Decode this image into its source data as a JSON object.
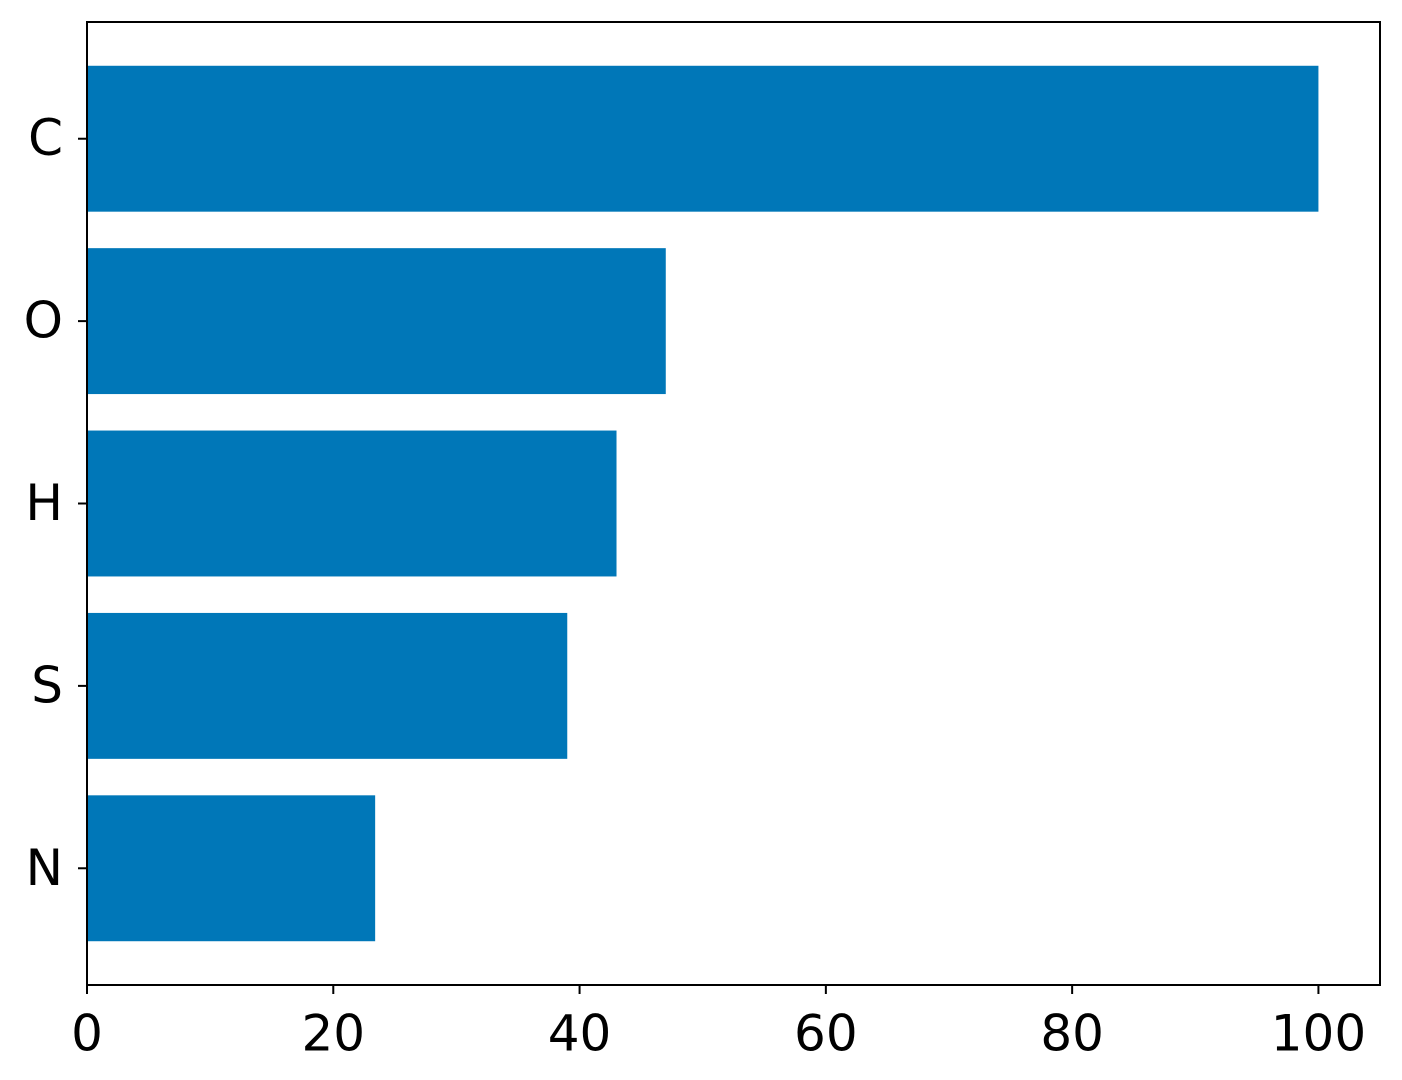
{
  "chart_data": {
    "type": "barh",
    "categories": [
      "C",
      "O",
      "H",
      "S",
      "N"
    ],
    "values": [
      100,
      47,
      43,
      39,
      23.4
    ],
    "color": "#0077b8",
    "xlim": [
      0,
      105
    ],
    "xticks": [
      0,
      20,
      40,
      60,
      80,
      100
    ]
  }
}
